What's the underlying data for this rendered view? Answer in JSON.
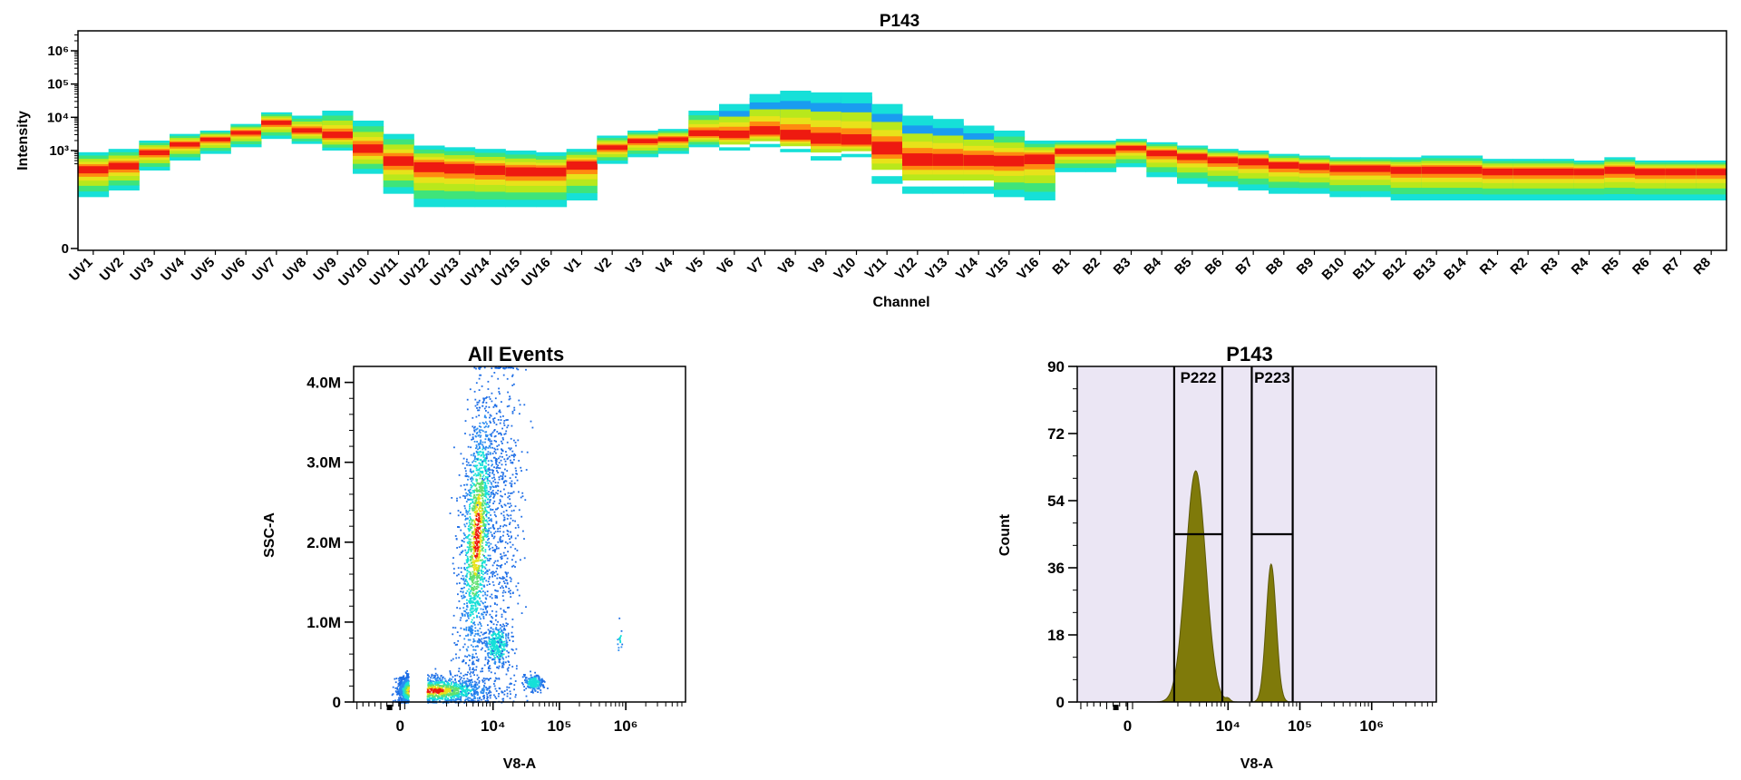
{
  "colors": {
    "low": "#1e6ee6",
    "mid": "#16e0d8",
    "high": "#e8e21a",
    "peak": "#ee1a10",
    "histogram_fill": "#7f7a0a",
    "histogram_background": "#ebe6f4"
  },
  "chart_data": [
    {
      "type": "heatmap",
      "title": "P143",
      "xlabel": "Channel",
      "ylabel": "Intensity",
      "y_scale": "log",
      "y_tick_labels": [
        "0",
        "10³",
        "10⁴",
        "10⁵",
        "10⁶"
      ],
      "categories": [
        "UV1",
        "UV2",
        "UV3",
        "UV4",
        "UV5",
        "UV6",
        "UV7",
        "UV8",
        "UV9",
        "UV10",
        "UV11",
        "UV12",
        "UV13",
        "UV14",
        "UV15",
        "UV16",
        "V1",
        "V2",
        "V3",
        "V4",
        "V5",
        "V6",
        "V7",
        "V8",
        "V9",
        "V10",
        "V11",
        "V12",
        "V13",
        "V14",
        "V15",
        "V16",
        "B1",
        "B2",
        "B3",
        "B4",
        "B5",
        "B6",
        "B7",
        "B8",
        "B9",
        "B10",
        "B11",
        "B12",
        "B13",
        "B14",
        "R1",
        "R2",
        "R3",
        "R4",
        "R5",
        "R6",
        "R7",
        "R8"
      ],
      "median_log10": [
        2.45,
        2.55,
        2.95,
        3.2,
        3.35,
        3.55,
        3.85,
        3.6,
        3.45,
        3.05,
        2.7,
        2.55,
        2.5,
        2.45,
        2.4,
        2.4,
        2.6,
        3.1,
        3.3,
        3.35,
        3.5,
        3.45,
        3.55,
        3.4,
        3.3,
        3.25,
        3.05,
        2.7,
        2.7,
        2.7,
        2.7,
        2.8,
        3.0,
        3.0,
        3.1,
        2.95,
        2.85,
        2.75,
        2.7,
        2.6,
        2.55,
        2.5,
        2.5,
        2.45,
        2.45,
        2.45,
        2.4,
        2.4,
        2.4,
        2.4,
        2.45,
        2.4,
        2.4,
        2.4
      ],
      "upper_log10": [
        2.95,
        3.05,
        3.3,
        3.5,
        3.6,
        3.8,
        4.15,
        4.05,
        4.2,
        3.9,
        3.5,
        3.15,
        3.1,
        3.05,
        3.0,
        2.95,
        3.05,
        3.45,
        3.6,
        3.65,
        4.2,
        4.4,
        4.7,
        4.8,
        4.75,
        4.75,
        4.4,
        4.05,
        3.95,
        3.75,
        3.6,
        3.3,
        3.3,
        3.3,
        3.35,
        3.25,
        3.15,
        3.05,
        3.0,
        2.9,
        2.85,
        2.8,
        2.8,
        2.8,
        2.85,
        2.85,
        2.75,
        2.75,
        2.75,
        2.7,
        2.8,
        2.7,
        2.7,
        2.7
      ],
      "lower_log10": [
        1.6,
        1.8,
        2.4,
        2.7,
        2.9,
        3.1,
        3.35,
        3.2,
        3.0,
        2.3,
        1.7,
        1.3,
        1.3,
        1.3,
        1.3,
        1.3,
        1.5,
        2.6,
        2.8,
        2.9,
        3.1,
        3.0,
        3.1,
        2.95,
        2.7,
        2.8,
        2.0,
        1.7,
        1.7,
        1.7,
        1.6,
        1.5,
        2.35,
        2.35,
        2.5,
        2.2,
        2.0,
        1.9,
        1.8,
        1.7,
        1.7,
        1.6,
        1.6,
        1.5,
        1.5,
        1.5,
        1.5,
        1.5,
        1.5,
        1.5,
        1.5,
        1.5,
        1.5,
        1.5
      ],
      "ylim_log10": [
        0,
        6.6
      ]
    },
    {
      "type": "scatter",
      "title": "All Events",
      "xlabel": "V8-A",
      "ylabel": "SSC-A",
      "x_tick_labels": [
        "0",
        "10⁴",
        "10⁵",
        "10⁶"
      ],
      "y_tick_labels": [
        "0",
        "1.0M",
        "2.0M",
        "3.0M",
        "4.0M"
      ],
      "ylim": [
        0,
        4200000
      ],
      "populations": [
        {
          "x_log10": 3.1,
          "x_spread": 0.45,
          "y_mean": 150000,
          "y_spread": 90000,
          "count": 1500
        },
        {
          "x_log10": 3.75,
          "x_spread": 0.12,
          "y_mean": 2100000,
          "y_spread": 850000,
          "count": 1700
        },
        {
          "x_log10": 4.05,
          "x_spread": 0.1,
          "y_mean": 720000,
          "y_spread": 140000,
          "count": 350
        },
        {
          "x_log10": 4.6,
          "x_spread": 0.07,
          "y_mean": 250000,
          "y_spread": 50000,
          "count": 220
        },
        {
          "x_log10": 4.15,
          "x_spread": 0.15,
          "y_mean": 2300000,
          "y_spread": 1100000,
          "count": 500
        },
        {
          "x_log10": 5.9,
          "x_spread": 0.02,
          "y_mean": 780000,
          "y_spread": 80000,
          "count": 15
        }
      ]
    },
    {
      "type": "area",
      "title": "P143",
      "xlabel": "V8-A",
      "ylabel": "Count",
      "x_tick_labels": [
        "0",
        "10⁴",
        "10⁵",
        "10⁶"
      ],
      "y_ticks": [
        0,
        18,
        36,
        54,
        72,
        90
      ],
      "ylim": [
        0,
        90
      ],
      "peaks": [
        {
          "x_log10": 3.55,
          "height": 62,
          "width_log10": 0.14
        },
        {
          "x_log10": 4.6,
          "height": 37,
          "width_log10": 0.07
        }
      ],
      "gates": [
        {
          "name": "P222",
          "x_min_log10": 3.25,
          "x_max_log10": 3.92,
          "bar_level": 45
        },
        {
          "name": "P223",
          "x_min_log10": 4.33,
          "x_max_log10": 4.9,
          "bar_level": 45
        }
      ]
    }
  ]
}
